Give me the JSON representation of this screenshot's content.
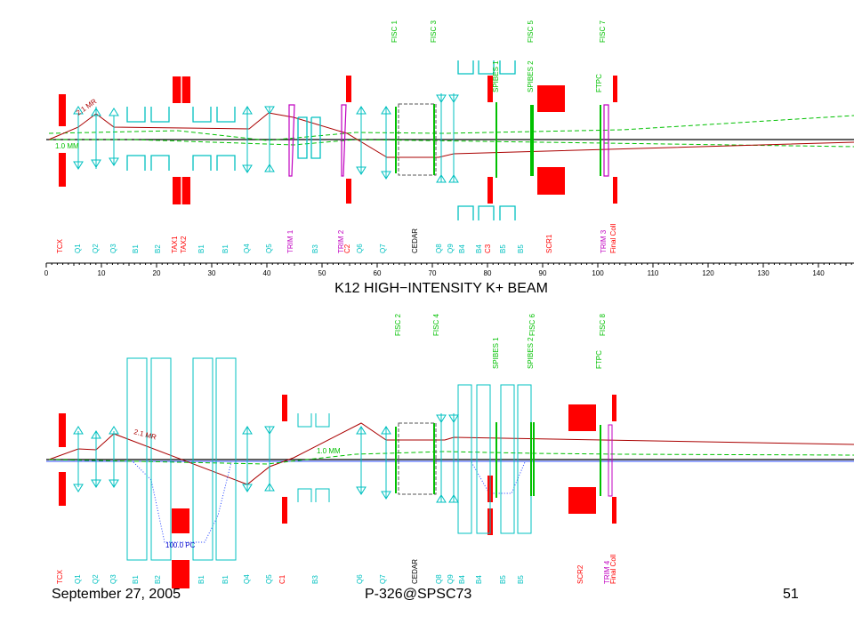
{
  "title": "K12 HIGH−INTENSITY K+ BEAM",
  "footer": {
    "date": "September 27, 2005",
    "id": "P-326@SPSC73",
    "page": "51"
  },
  "colors": {
    "red": "#ff0000",
    "cyan": "#00c0c0",
    "green": "#00c000",
    "magenta": "#c000c0",
    "dark_red": "#aa0000",
    "blue": "#0000cc"
  },
  "axis": {
    "ticks": [
      "0",
      "10",
      "20",
      "30",
      "40",
      "50",
      "60",
      "70",
      "80",
      "90",
      "100",
      "110",
      "120",
      "130",
      "140"
    ]
  },
  "top": {
    "top_labels": [
      "FISC 1",
      "FISC 3",
      "SPIBES 1",
      "SPIBES 2",
      "FISC 5",
      "FTPC",
      "FISC 7"
    ],
    "bottom_labels": [
      "TCX",
      "Q1",
      "Q2",
      "Q3",
      "B1",
      "B2",
      "TAX1",
      "TAX2",
      "B1",
      "B1",
      "Q4",
      "Q5",
      "TRIM 1",
      "B3",
      "TRIM 2",
      "C2",
      "Q6",
      "Q7",
      "CEDAR",
      "Q8",
      "Q9",
      "B4",
      "B4",
      "C3",
      "B5",
      "B5",
      "SCR1",
      "TRIM 3",
      "Final Coll"
    ],
    "annotations": [
      "2.1 MR",
      "1.0 MM"
    ]
  },
  "bottom": {
    "top_labels": [
      "FISC 2",
      "FISC 4",
      "SPIBES 1",
      "SPIBES 2",
      "FISC 6",
      "FTPC",
      "FISC 8"
    ],
    "bottom_labels": [
      "TCX",
      "Q1",
      "Q2",
      "Q3",
      "B1",
      "B2",
      "B1",
      "B1",
      "Q4",
      "Q5",
      "C1",
      "B3",
      "Q6",
      "Q7",
      "CEDAR",
      "Q8",
      "Q9",
      "B4",
      "B4",
      "B5",
      "B5",
      "SCR2",
      "TRIM 4",
      "Final Coll"
    ],
    "annotations": [
      "2.1 MR",
      "1.0 MM",
      "100.0 PC"
    ]
  }
}
